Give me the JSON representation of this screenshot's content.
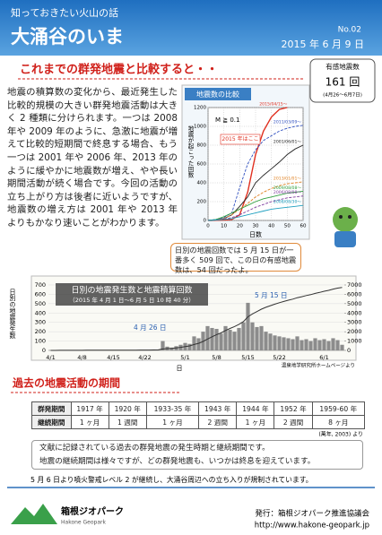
{
  "header": {
    "series_title": "知っておきたい火山の話",
    "title": "大涌谷のいま",
    "issue": "No.02",
    "date": "2015 年 6 月 9 日"
  },
  "section1": {
    "heading": "これまでの群発地震と比較すると・・",
    "badge": {
      "label": "有感地震数",
      "count": "161 回",
      "period": "(4月26～6月7日)"
    },
    "paragraph": "地震の積算数の変化から、最近発生した比較的規模の大きい群発地震活動は大きく 2 種類に分けられます。一つは 2008 年や 2009 年のように、急激に地震が増えて比較的短期間で終息する場合、もう一つは 2001 年や 2006 年、2013 年のように緩やかに地震数が増え、やや長い期間活動が続く場合です。今回の活動の立ち上がり方は後者に近いようですが、地震数の増え方は 2001 年や 2013 年よりもかなり速いことがわかります。",
    "callout": "日別の地震回数では 5 月 15 日が一番多く 509 回で、この日の有感地震数は、54 回だったよ。"
  },
  "charts": [
    {
      "type": "line",
      "title": "地震数の比較",
      "ylabel": "地震が起こった回数",
      "xlabel": "日数",
      "annotations": [
        "M ≧ 0.1",
        "2015 年はここ"
      ],
      "x": [
        0,
        5,
        10,
        15,
        20,
        25,
        30,
        35,
        40,
        45,
        50,
        55,
        60
      ],
      "xlim": [
        0,
        60
      ],
      "ylim": [
        0,
        1200
      ],
      "xticks": [
        0,
        10,
        20,
        30,
        40,
        50,
        60
      ],
      "yticks": [
        0,
        200,
        400,
        600,
        800,
        1000,
        1200
      ],
      "grid": true,
      "series": [
        {
          "name": "2015/04/15～",
          "color": "#e03020",
          "values": [
            0,
            2,
            5,
            10,
            60,
            300,
            700,
            950,
            1100,
            1180,
            1200,
            null,
            null
          ]
        },
        {
          "name": "2011/03/09～",
          "color": "#3050c0",
          "values": [
            0,
            10,
            30,
            80,
            350,
            600,
            750,
            850,
            900,
            950,
            980,
            1000,
            1010
          ]
        },
        {
          "name": "2001/06/01～",
          "color": "#222222",
          "values": [
            0,
            5,
            20,
            60,
            150,
            250,
            400,
            480,
            550,
            620,
            700,
            760,
            800
          ]
        },
        {
          "name": "2013/01/01～",
          "color": "#e08020",
          "values": [
            0,
            5,
            20,
            60,
            120,
            180,
            250,
            300,
            340,
            370,
            390,
            400,
            410
          ]
        },
        {
          "name": "2009/08/08～",
          "color": "#30a040",
          "values": [
            0,
            10,
            40,
            80,
            120,
            160,
            200,
            230,
            250,
            270,
            290,
            300,
            310
          ]
        },
        {
          "name": "2006/08/08～",
          "color": "#8040a0",
          "values": [
            0,
            5,
            15,
            30,
            60,
            100,
            140,
            170,
            200,
            220,
            240,
            250,
            260
          ]
        },
        {
          "name": "2008/08/30～",
          "color": "#20a0c0",
          "values": [
            0,
            5,
            10,
            20,
            40,
            60,
            80,
            100,
            120,
            130,
            140,
            150,
            160
          ]
        }
      ]
    },
    {
      "type": "bar",
      "title": "日別の地震発生数と地震積算回数",
      "subtitle": "（2015 年 4 月 1 日～6 月 5 日 10 時 40 分）",
      "ylabel": "日別の地震発生数",
      "xlabel": "日",
      "annotations": [
        "4 月 26 日",
        "5 月 15 日"
      ],
      "categories": [
        "4/1",
        null,
        null,
        null,
        null,
        null,
        null,
        "4/8",
        null,
        null,
        null,
        null,
        null,
        null,
        "4/15",
        null,
        null,
        null,
        null,
        null,
        null,
        "4/22",
        null,
        null,
        null,
        null,
        null,
        null,
        null,
        null,
        "5/1",
        null,
        null,
        null,
        null,
        null,
        null,
        "5/8",
        null,
        null,
        null,
        null,
        null,
        null,
        "5/15",
        null,
        null,
        null,
        null,
        null,
        null,
        "5/22",
        null,
        null,
        null,
        null,
        null,
        null,
        null,
        null,
        null,
        "6/1",
        null,
        null,
        null,
        null
      ],
      "ylim": [
        0,
        700
      ],
      "yticks": [
        0,
        100,
        200,
        300,
        400,
        500,
        600,
        700
      ],
      "y2lim": [
        0,
        7000
      ],
      "y2ticks": [
        0,
        1000,
        2000,
        3000,
        4000,
        5000,
        6000,
        7000
      ],
      "grid": true,
      "series": [
        {
          "color": "#8c8c8c",
          "values": [
            2,
            1,
            3,
            2,
            1,
            0,
            2,
            1,
            3,
            2,
            1,
            2,
            1,
            0,
            2,
            3,
            1,
            2,
            1,
            2,
            3,
            4,
            2,
            5,
            8,
            100,
            40,
            30,
            45,
            60,
            80,
            70,
            150,
            130,
            200,
            260,
            240,
            230,
            180,
            260,
            220,
            200,
            240,
            300,
            509,
            300,
            250,
            260,
            200,
            180,
            160,
            150,
            140,
            130,
            120,
            150,
            110,
            120,
            100,
            130,
            110,
            120,
            100,
            130,
            110,
            60
          ]
        },
        {
          "color": "#333333",
          "axis": "y2",
          "values": [
            2,
            3,
            6,
            8,
            9,
            9,
            11,
            12,
            15,
            17,
            18,
            20,
            21,
            21,
            23,
            26,
            27,
            29,
            30,
            32,
            35,
            39,
            41,
            46,
            54,
            154,
            194,
            224,
            269,
            329,
            409,
            479,
            629,
            759,
            959,
            1219,
            1459,
            1689,
            1869,
            2129,
            2349,
            2549,
            2789,
            3089,
            3598,
            3898,
            4148,
            4408,
            4608,
            4788,
            4948,
            5098,
            5238,
            5368,
            5488,
            5638,
            5748,
            5868,
            5968,
            6098,
            6208,
            6328,
            6428,
            6558,
            6668,
            6728
          ]
        }
      ],
      "source": "温泉地学研究所ホームページより"
    }
  ],
  "section2": {
    "heading": "過去の地震活動の期間",
    "table": {
      "rows": [
        [
          "群発期間",
          "1917 年",
          "1920 年",
          "1933-35 年",
          "1943 年",
          "1944 年",
          "1952 年",
          "1959-60 年"
        ],
        [
          "継続期間",
          "1 ヶ月",
          "1 週間",
          "1 ヶ月",
          "2 週間",
          "1 ヶ月",
          "2 週間",
          "8 ヶ月"
        ]
      ]
    },
    "source": "(萬年, 2003) より",
    "notes": [
      "文献に記録されている過去の群発地震の発生時期と継続期間です。",
      "地震の継続期間は様々ですが、どの群発地震も、いつかは終息を迎えています。"
    ]
  },
  "footer": {
    "notice": "5 月 6 日より噴火警戒レベル 2 が継続し、大涌谷周辺への立ち入りが規制されています。",
    "logo_name": "箱根ジオパーク",
    "logo_sub": "Hakone Geopark",
    "publisher": "発行：箱根ジオパーク推進協議会",
    "url": "http://www.hakone-geopark.jp"
  }
}
